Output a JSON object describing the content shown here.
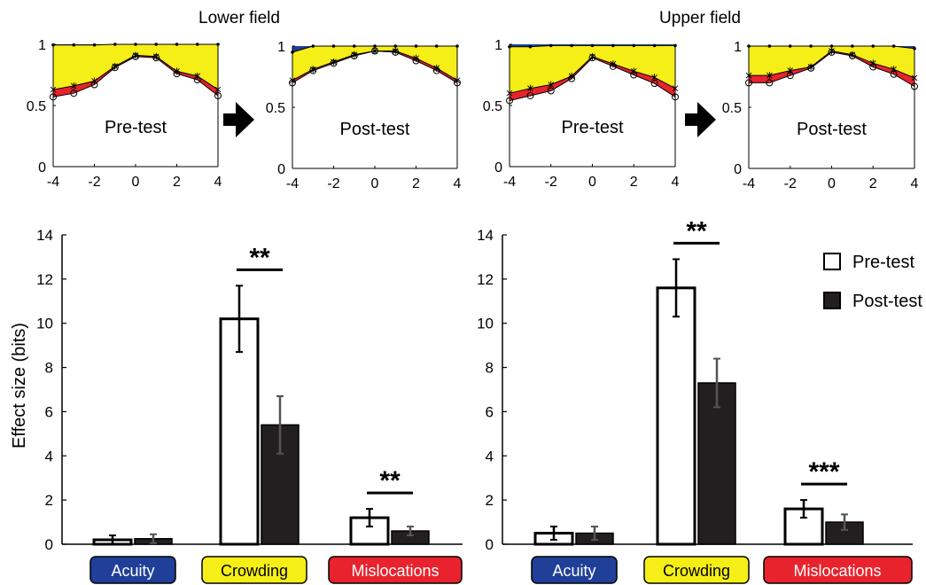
{
  "figure": {
    "lower_field_title": "Lower field",
    "upper_field_title": "Upper field",
    "ylabel": "Effect size (bits)",
    "legend": {
      "pre": "Pre-test",
      "post": "Post-test"
    },
    "category_labels": [
      "Acuity",
      "Crowding",
      "Mislocations"
    ]
  },
  "colors": {
    "acuity": "#1f3f99",
    "crowding": "#f5ee17",
    "mislocations": "#e8232d",
    "post_bar": "#231f20"
  },
  "chart_data": [
    {
      "type": "area",
      "field": "lower",
      "label": "Pre-test",
      "x": [
        -4,
        -3,
        -2,
        -1,
        0,
        1,
        2,
        3,
        4
      ],
      "xticks": [
        -4,
        -2,
        0,
        2,
        4
      ],
      "yticks": [
        0,
        0.5,
        1
      ],
      "xlim": [
        -4,
        4
      ],
      "ylim": [
        0,
        1
      ],
      "top_line": [
        0.995,
        0.995,
        0.995,
        1,
        1,
        1,
        1,
        1,
        1
      ],
      "crowding_line": [
        0.63,
        0.66,
        0.7,
        0.82,
        0.91,
        0.9,
        0.78,
        0.74,
        0.63
      ],
      "circles": [
        0.57,
        0.6,
        0.67,
        0.81,
        0.9,
        0.89,
        0.76,
        0.71,
        0.58
      ]
    },
    {
      "type": "area",
      "field": "lower",
      "label": "Post-test",
      "x": [
        -4,
        -3,
        -2,
        -1,
        0,
        1,
        2,
        3,
        4
      ],
      "xticks": [
        -4,
        -2,
        0,
        2,
        4
      ],
      "yticks": [
        0,
        0.5,
        1
      ],
      "xlim": [
        -4,
        4
      ],
      "ylim": [
        0,
        1
      ],
      "top_line": [
        0.95,
        1,
        1,
        1,
        1,
        1,
        1,
        1,
        1
      ],
      "crowding_line": [
        0.72,
        0.81,
        0.87,
        0.93,
        0.96,
        0.96,
        0.9,
        0.82,
        0.72
      ],
      "circles": [
        0.7,
        0.8,
        0.86,
        0.92,
        0.96,
        0.95,
        0.88,
        0.8,
        0.7
      ]
    },
    {
      "type": "area",
      "field": "upper",
      "label": "Pre-test",
      "x": [
        -4,
        -3,
        -2,
        -1,
        0,
        1,
        2,
        3,
        4
      ],
      "xticks": [
        -4,
        -2,
        0,
        2,
        4
      ],
      "yticks": [
        0,
        0.5,
        1
      ],
      "xlim": [
        -4,
        4
      ],
      "ylim": [
        0,
        1
      ],
      "top_line": [
        0.98,
        0.98,
        0.99,
        0.99,
        0.99,
        0.99,
        0.99,
        0.99,
        0.99
      ],
      "crowding_line": [
        0.6,
        0.64,
        0.67,
        0.74,
        0.9,
        0.84,
        0.78,
        0.73,
        0.64
      ],
      "circles": [
        0.54,
        0.58,
        0.62,
        0.72,
        0.89,
        0.82,
        0.75,
        0.68,
        0.57
      ]
    },
    {
      "type": "area",
      "field": "upper",
      "label": "Post-test",
      "x": [
        -4,
        -3,
        -2,
        -1,
        0,
        1,
        2,
        3,
        4
      ],
      "xticks": [
        -4,
        -2,
        0,
        2,
        4
      ],
      "yticks": [
        0,
        0.5,
        1
      ],
      "xlim": [
        -4,
        4
      ],
      "ylim": [
        0,
        1
      ],
      "top_line": [
        1,
        1,
        1,
        1,
        1,
        1,
        1,
        1,
        0.98
      ],
      "crowding_line": [
        0.76,
        0.76,
        0.8,
        0.83,
        0.96,
        0.93,
        0.86,
        0.81,
        0.74
      ],
      "circles": [
        0.7,
        0.7,
        0.76,
        0.82,
        0.95,
        0.92,
        0.83,
        0.77,
        0.67
      ]
    },
    {
      "type": "bar",
      "field": "lower",
      "categories": [
        "Acuity",
        "Crowding",
        "Mislocations"
      ],
      "ylabel": "Effect size (bits)",
      "ylim": [
        0,
        14
      ],
      "yticks": [
        0,
        2,
        4,
        6,
        8,
        10,
        12,
        14
      ],
      "series": [
        {
          "name": "Pre-test",
          "values": [
            0.2,
            10.2,
            1.2
          ],
          "errors": [
            0.2,
            1.5,
            0.4
          ]
        },
        {
          "name": "Post-test",
          "values": [
            0.25,
            5.4,
            0.6
          ],
          "errors": [
            0.2,
            1.3,
            0.2
          ]
        }
      ],
      "significance": [
        "",
        "**",
        "**"
      ]
    },
    {
      "type": "bar",
      "field": "upper",
      "categories": [
        "Acuity",
        "Crowding",
        "Mislocations"
      ],
      "ylim": [
        0,
        14
      ],
      "yticks": [
        0,
        2,
        4,
        6,
        8,
        10,
        12,
        14
      ],
      "series": [
        {
          "name": "Pre-test",
          "values": [
            0.5,
            11.6,
            1.6
          ],
          "errors": [
            0.3,
            1.3,
            0.4
          ]
        },
        {
          "name": "Post-test",
          "values": [
            0.5,
            7.3,
            1.0
          ],
          "errors": [
            0.3,
            1.1,
            0.35
          ]
        }
      ],
      "significance": [
        "",
        "**",
        "***"
      ]
    }
  ]
}
